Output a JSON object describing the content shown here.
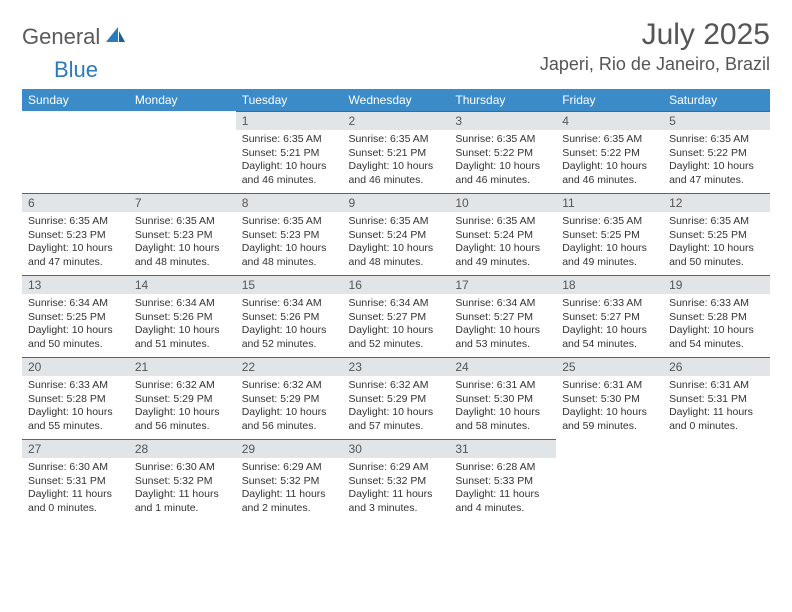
{
  "logo": {
    "word1": "General",
    "word2": "Blue",
    "color1": "#5a5a5a",
    "color2": "#2a7abf",
    "icon_color": "#2a7abf"
  },
  "title": "July 2025",
  "location": "Japeri, Rio de Janeiro, Brazil",
  "header_bg": "#3b8bc9",
  "header_text": "#ffffff",
  "daynum_bg": "#e2e5e8",
  "daynum_border": "#3b6a94",
  "days": [
    "Sunday",
    "Monday",
    "Tuesday",
    "Wednesday",
    "Thursday",
    "Friday",
    "Saturday"
  ],
  "blanks_before": 2,
  "cells": [
    {
      "n": "1",
      "sr": "Sunrise: 6:35 AM",
      "ss": "Sunset: 5:21 PM",
      "dl": "Daylight: 10 hours and 46 minutes."
    },
    {
      "n": "2",
      "sr": "Sunrise: 6:35 AM",
      "ss": "Sunset: 5:21 PM",
      "dl": "Daylight: 10 hours and 46 minutes."
    },
    {
      "n": "3",
      "sr": "Sunrise: 6:35 AM",
      "ss": "Sunset: 5:22 PM",
      "dl": "Daylight: 10 hours and 46 minutes."
    },
    {
      "n": "4",
      "sr": "Sunrise: 6:35 AM",
      "ss": "Sunset: 5:22 PM",
      "dl": "Daylight: 10 hours and 46 minutes."
    },
    {
      "n": "5",
      "sr": "Sunrise: 6:35 AM",
      "ss": "Sunset: 5:22 PM",
      "dl": "Daylight: 10 hours and 47 minutes."
    },
    {
      "n": "6",
      "sr": "Sunrise: 6:35 AM",
      "ss": "Sunset: 5:23 PM",
      "dl": "Daylight: 10 hours and 47 minutes."
    },
    {
      "n": "7",
      "sr": "Sunrise: 6:35 AM",
      "ss": "Sunset: 5:23 PM",
      "dl": "Daylight: 10 hours and 48 minutes."
    },
    {
      "n": "8",
      "sr": "Sunrise: 6:35 AM",
      "ss": "Sunset: 5:23 PM",
      "dl": "Daylight: 10 hours and 48 minutes."
    },
    {
      "n": "9",
      "sr": "Sunrise: 6:35 AM",
      "ss": "Sunset: 5:24 PM",
      "dl": "Daylight: 10 hours and 48 minutes."
    },
    {
      "n": "10",
      "sr": "Sunrise: 6:35 AM",
      "ss": "Sunset: 5:24 PM",
      "dl": "Daylight: 10 hours and 49 minutes."
    },
    {
      "n": "11",
      "sr": "Sunrise: 6:35 AM",
      "ss": "Sunset: 5:25 PM",
      "dl": "Daylight: 10 hours and 49 minutes."
    },
    {
      "n": "12",
      "sr": "Sunrise: 6:35 AM",
      "ss": "Sunset: 5:25 PM",
      "dl": "Daylight: 10 hours and 50 minutes."
    },
    {
      "n": "13",
      "sr": "Sunrise: 6:34 AM",
      "ss": "Sunset: 5:25 PM",
      "dl": "Daylight: 10 hours and 50 minutes."
    },
    {
      "n": "14",
      "sr": "Sunrise: 6:34 AM",
      "ss": "Sunset: 5:26 PM",
      "dl": "Daylight: 10 hours and 51 minutes."
    },
    {
      "n": "15",
      "sr": "Sunrise: 6:34 AM",
      "ss": "Sunset: 5:26 PM",
      "dl": "Daylight: 10 hours and 52 minutes."
    },
    {
      "n": "16",
      "sr": "Sunrise: 6:34 AM",
      "ss": "Sunset: 5:27 PM",
      "dl": "Daylight: 10 hours and 52 minutes."
    },
    {
      "n": "17",
      "sr": "Sunrise: 6:34 AM",
      "ss": "Sunset: 5:27 PM",
      "dl": "Daylight: 10 hours and 53 minutes."
    },
    {
      "n": "18",
      "sr": "Sunrise: 6:33 AM",
      "ss": "Sunset: 5:27 PM",
      "dl": "Daylight: 10 hours and 54 minutes."
    },
    {
      "n": "19",
      "sr": "Sunrise: 6:33 AM",
      "ss": "Sunset: 5:28 PM",
      "dl": "Daylight: 10 hours and 54 minutes."
    },
    {
      "n": "20",
      "sr": "Sunrise: 6:33 AM",
      "ss": "Sunset: 5:28 PM",
      "dl": "Daylight: 10 hours and 55 minutes."
    },
    {
      "n": "21",
      "sr": "Sunrise: 6:32 AM",
      "ss": "Sunset: 5:29 PM",
      "dl": "Daylight: 10 hours and 56 minutes."
    },
    {
      "n": "22",
      "sr": "Sunrise: 6:32 AM",
      "ss": "Sunset: 5:29 PM",
      "dl": "Daylight: 10 hours and 56 minutes."
    },
    {
      "n": "23",
      "sr": "Sunrise: 6:32 AM",
      "ss": "Sunset: 5:29 PM",
      "dl": "Daylight: 10 hours and 57 minutes."
    },
    {
      "n": "24",
      "sr": "Sunrise: 6:31 AM",
      "ss": "Sunset: 5:30 PM",
      "dl": "Daylight: 10 hours and 58 minutes."
    },
    {
      "n": "25",
      "sr": "Sunrise: 6:31 AM",
      "ss": "Sunset: 5:30 PM",
      "dl": "Daylight: 10 hours and 59 minutes."
    },
    {
      "n": "26",
      "sr": "Sunrise: 6:31 AM",
      "ss": "Sunset: 5:31 PM",
      "dl": "Daylight: 11 hours and 0 minutes."
    },
    {
      "n": "27",
      "sr": "Sunrise: 6:30 AM",
      "ss": "Sunset: 5:31 PM",
      "dl": "Daylight: 11 hours and 0 minutes."
    },
    {
      "n": "28",
      "sr": "Sunrise: 6:30 AM",
      "ss": "Sunset: 5:32 PM",
      "dl": "Daylight: 11 hours and 1 minute."
    },
    {
      "n": "29",
      "sr": "Sunrise: 6:29 AM",
      "ss": "Sunset: 5:32 PM",
      "dl": "Daylight: 11 hours and 2 minutes."
    },
    {
      "n": "30",
      "sr": "Sunrise: 6:29 AM",
      "ss": "Sunset: 5:32 PM",
      "dl": "Daylight: 11 hours and 3 minutes."
    },
    {
      "n": "31",
      "sr": "Sunrise: 6:28 AM",
      "ss": "Sunset: 5:33 PM",
      "dl": "Daylight: 11 hours and 4 minutes."
    }
  ]
}
